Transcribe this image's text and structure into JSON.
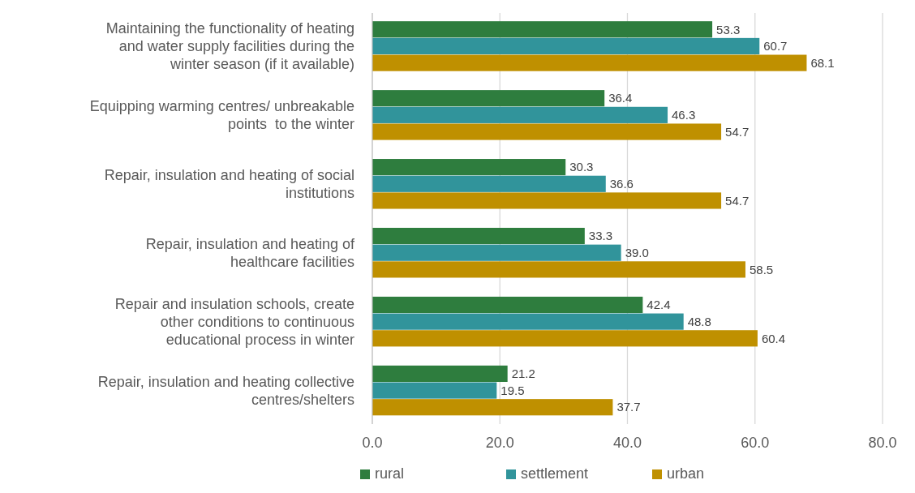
{
  "chart_data": {
    "type": "bar",
    "orientation": "horizontal",
    "categories": [
      "Maintaining the functionality of heating and water supply facilities during the winter season (if it available)",
      "Equipping warming centres/ unbreakable points  to the winter",
      "Repair, insulation and heating of social institutions",
      "Repair, insulation and heating of healthcare facilities",
      "Repair and insulation schools, create other conditions to continuous educational process in winter",
      "Repair, insulation and heating collective centres/shelters"
    ],
    "series": [
      {
        "name": "rural",
        "color": "#2e7d3e",
        "values": [
          53.3,
          36.4,
          30.3,
          33.3,
          42.4,
          21.2
        ],
        "value_labels": [
          "53.3",
          "36.4",
          "30.3",
          "33.3",
          "42.4",
          "21.2"
        ]
      },
      {
        "name": "settlement",
        "color": "#31949b",
        "values": [
          60.7,
          46.3,
          36.6,
          39.0,
          48.8,
          19.5
        ],
        "value_labels": [
          "60.7",
          "46.3",
          "36.6",
          "39.0",
          "48.8",
          "19.5"
        ]
      },
      {
        "name": "urban",
        "color": "#bf9000",
        "values": [
          68.1,
          54.7,
          54.7,
          58.5,
          60.4,
          37.7
        ],
        "value_labels": [
          "68.1",
          "54.7",
          "54.7",
          "58.5",
          "60.4",
          "37.7"
        ]
      }
    ],
    "xlim": [
      0,
      80
    ],
    "xticks": [
      {
        "value": 0,
        "label": "0.0"
      },
      {
        "value": 20,
        "label": "20.0"
      },
      {
        "value": 40,
        "label": "40.0"
      },
      {
        "value": 60,
        "label": "60.0"
      },
      {
        "value": 80,
        "label": "80.0"
      }
    ],
    "grid": "x",
    "legend": "bottom"
  }
}
